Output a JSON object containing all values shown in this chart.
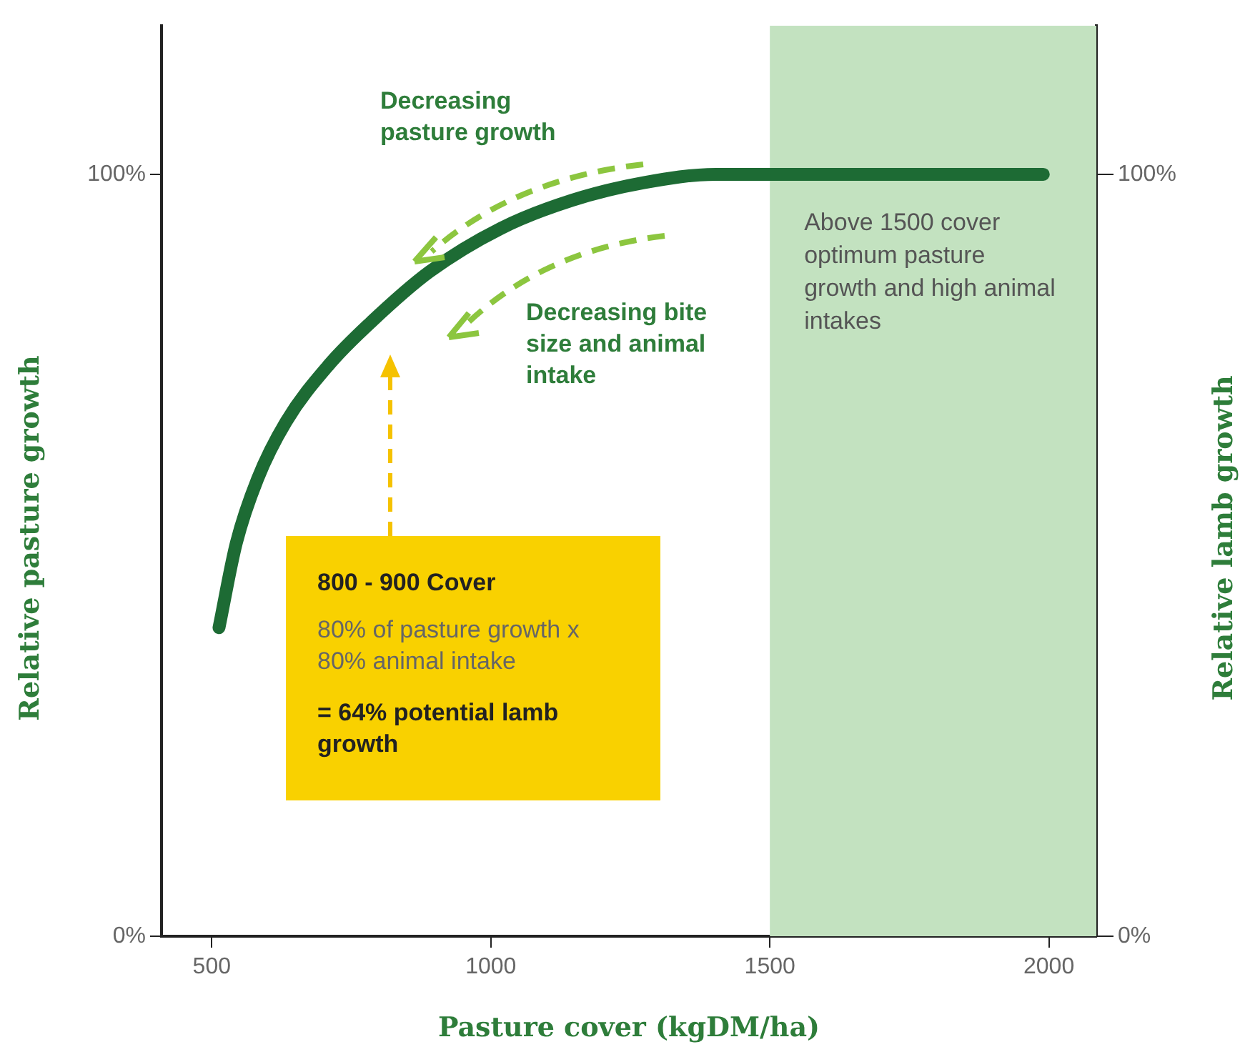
{
  "chart_data": {
    "type": "line",
    "xlabel": "Pasture cover (kgDM/ha)",
    "ylabel": "Relative pasture growth",
    "y2label": "Relative lamb growth",
    "xlim": [
      410,
      2085
    ],
    "xticks": [
      500,
      1000,
      1500,
      2000
    ],
    "ylim": [
      0,
      119.5
    ],
    "yticks": [
      {
        "value": 0,
        "label": "0%"
      },
      {
        "value": 100,
        "label": "100%"
      }
    ],
    "y2lim": [
      0,
      119.5
    ],
    "y2ticks": [
      {
        "value": 0,
        "label": "0%"
      },
      {
        "value": 100,
        "label": "100%"
      }
    ],
    "grid": false,
    "legend": false,
    "marker": "none",
    "line_style": "solid",
    "series": [
      {
        "color": "#1d6b34",
        "x": [
          513,
          544,
          582,
          633,
          710,
          787,
          890,
          1018,
          1146,
          1274,
          1403,
          1500,
          1990
        ],
        "values": [
          40.5,
          51.6,
          60,
          67.5,
          75,
          80.7,
          87.2,
          92.9,
          96.6,
          98.9,
          100,
          100,
          100
        ]
      }
    ],
    "bands": [
      {
        "axis": "x",
        "from": 1500,
        "to": 2085,
        "label": "Above 1500 cover optimum pasture growth and high animal intakes",
        "color": "#c3e2c0"
      }
    ],
    "annotations": [
      "Decreasing pasture growth",
      "Decreasing bite size and animal intake",
      "800 - 900 Cover",
      "80% of pasture growth x 80% animal intake",
      "= 64% potential lamb growth"
    ]
  }
}
